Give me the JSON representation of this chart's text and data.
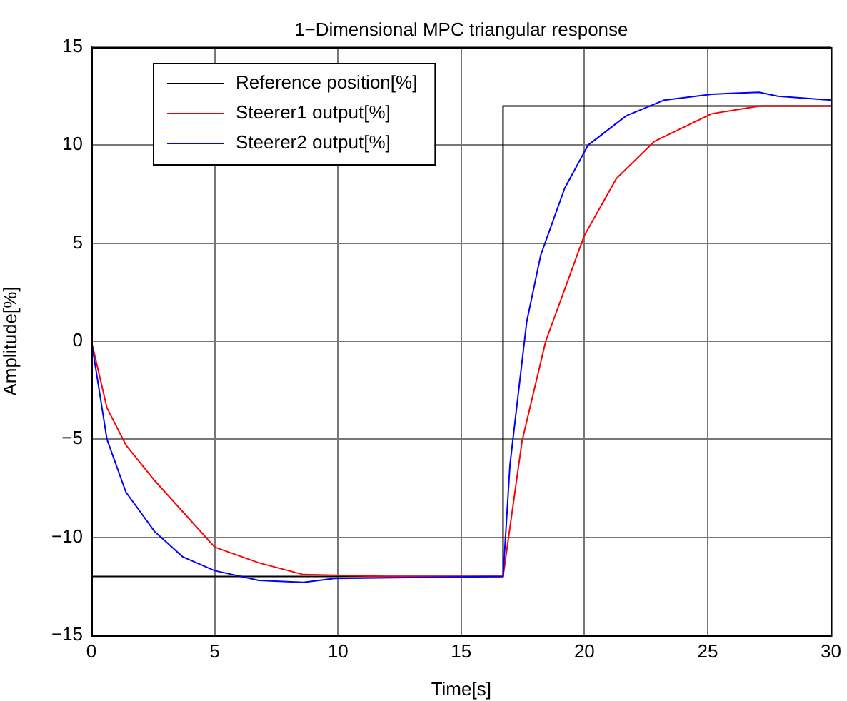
{
  "chart_data": {
    "type": "line",
    "title": "1−Dimensional MPC triangular response",
    "xlabel": "Time[s]",
    "ylabel": "Amplitude[%]",
    "xlim": [
      0,
      30
    ],
    "xticks": [
      0,
      5,
      10,
      15,
      20,
      25,
      30
    ],
    "ylim": [
      -15,
      15
    ],
    "yticks": [
      -15,
      -10,
      -5,
      0,
      5,
      10,
      15
    ],
    "grid": true,
    "legend": "top left",
    "marker": "none",
    "line_style": "solid",
    "series": [
      {
        "name": "Reference position[%]",
        "color": "#000000",
        "x": [
          0,
          16.7,
          16.7,
          30
        ],
        "values": [
          -12,
          -12,
          12,
          12
        ]
      },
      {
        "name": "Steerer1 output[%]",
        "color": "#ff0000",
        "x": [
          0,
          0.63,
          1.4,
          2.56,
          3.71,
          5,
          6.79,
          8.6,
          12,
          16.7,
          17.47,
          18.43,
          20,
          21.3,
          22.85,
          25.16,
          27.1,
          30
        ],
        "values": [
          0,
          -3.4,
          -5.3,
          -7.1,
          -8.7,
          -10.5,
          -11.3,
          -11.9,
          -12,
          -12,
          -5.1,
          0,
          5.4,
          8.3,
          10.2,
          11.6,
          12,
          12
        ]
      },
      {
        "name": "Steerer2 output[%]",
        "color": "#0000ff",
        "x": [
          0,
          0.63,
          1.4,
          2.56,
          3.71,
          5,
          6.79,
          8.6,
          9.85,
          12.9,
          16.7,
          16.98,
          17.66,
          18.23,
          19.2,
          20.15,
          21.7,
          23.24,
          25.16,
          27.08,
          27.85,
          30
        ],
        "values": [
          0,
          -5,
          -7.7,
          -9.7,
          -11,
          -11.7,
          -12.2,
          -12.3,
          -12.1,
          -12.05,
          -12,
          -6.3,
          1,
          4.4,
          7.8,
          10,
          11.5,
          12.3,
          12.6,
          12.7,
          12.5,
          12.3
        ]
      }
    ]
  }
}
